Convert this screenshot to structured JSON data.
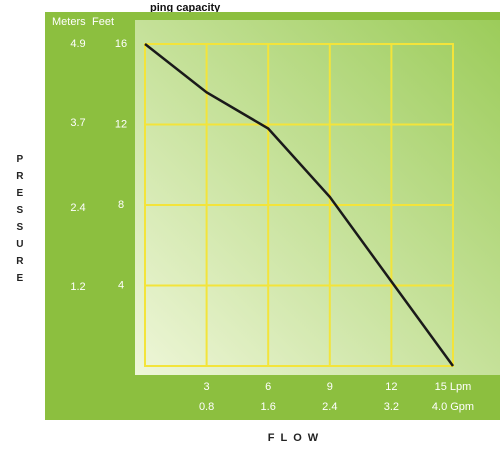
{
  "chart_data": {
    "type": "line",
    "title": "ping capacity",
    "ylabel": "PRESSURE",
    "xlabel": "FLOW",
    "y_unit": "Feet",
    "y2_unit": "Meters",
    "x": [
      0,
      3,
      6,
      9,
      12,
      15
    ],
    "series": [
      {
        "name": "Pressure",
        "color": "#1a1a1a",
        "values": [
          16,
          13.6,
          11.8,
          8.4,
          4.2,
          0
        ]
      }
    ],
    "xlim": [
      0,
      15
    ],
    "xticks": [
      3,
      6,
      9,
      12,
      {
        "value": 15,
        "label": "15 Lpm"
      }
    ],
    "x2lim": [
      0,
      4
    ],
    "x2ticks": [
      0.8,
      1.6,
      2.4,
      3.2,
      {
        "value": 4,
        "label": "4.0 Gpm"
      }
    ],
    "ylim": [
      0,
      16
    ],
    "yticks": [
      4,
      8,
      12,
      16
    ],
    "y2lim": [
      0,
      4.9
    ],
    "y2ticks": [
      1.2,
      2.4,
      3.7,
      4.9
    ],
    "grid": true,
    "grid_color": "#f3e43a"
  }
}
